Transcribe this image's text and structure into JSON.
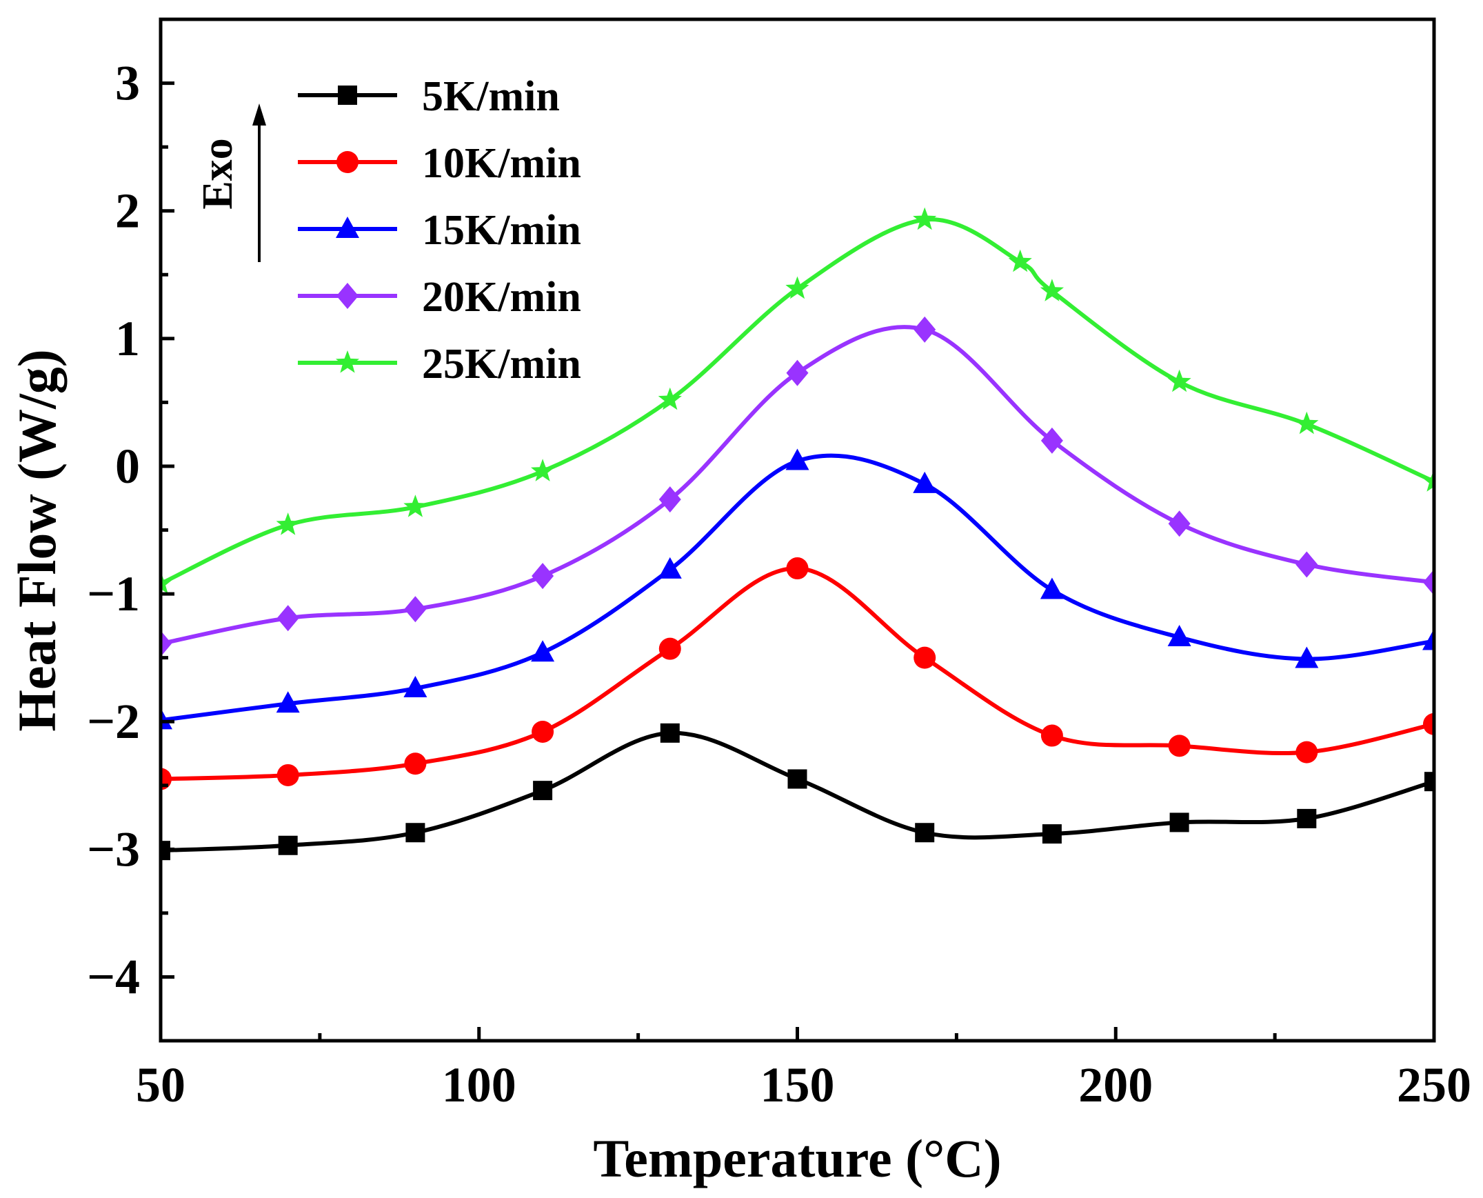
{
  "chart_data": {
    "type": "line",
    "title": "",
    "xlabel": "Temperature (°C)",
    "ylabel": "Heat Flow (W/g)",
    "xlim": [
      50,
      250
    ],
    "ylim": [
      -4.5,
      3.5
    ],
    "xticks": [
      50,
      100,
      150,
      200,
      250
    ],
    "xtick_labels": [
      "50",
      "100",
      "150",
      "200",
      "250"
    ],
    "yticks": [
      -4,
      -3,
      -2,
      -1,
      0,
      1,
      2,
      3
    ],
    "ytick_labels": [
      "−4",
      "−3",
      "−2",
      "−1",
      "0",
      "1",
      "2",
      "3"
    ],
    "annotation": "Exo",
    "legend_position": "top-left",
    "series": [
      {
        "name": "5K/min",
        "color": "#000000",
        "marker": "square",
        "x": [
          50,
          70,
          90,
          110,
          130,
          150,
          170,
          190,
          210,
          230,
          250
        ],
        "values": [
          -3.01,
          -2.97,
          -2.87,
          -2.54,
          -2.09,
          -2.45,
          -2.87,
          -2.88,
          -2.79,
          -2.76,
          -2.47
        ]
      },
      {
        "name": "10K/min",
        "color": "#ff0000",
        "marker": "circle",
        "x": [
          50,
          70,
          90,
          110,
          130,
          150,
          170,
          190,
          210,
          230,
          250
        ],
        "values": [
          -2.45,
          -2.42,
          -2.33,
          -2.08,
          -1.43,
          -0.8,
          -1.5,
          -2.11,
          -2.19,
          -2.24,
          -2.02
        ]
      },
      {
        "name": "15K/min",
        "color": "#0000ff",
        "marker": "triangle",
        "x": [
          50,
          70,
          90,
          110,
          130,
          150,
          170,
          190,
          210,
          230,
          250
        ],
        "values": [
          -1.99,
          -1.86,
          -1.74,
          -1.46,
          -0.81,
          0.04,
          -0.14,
          -0.97,
          -1.34,
          -1.51,
          -1.37
        ]
      },
      {
        "name": "20K/min",
        "color": "#9933ff",
        "marker": "diamond",
        "x": [
          50,
          70,
          90,
          110,
          130,
          150,
          170,
          190,
          210,
          230,
          250
        ],
        "values": [
          -1.39,
          -1.19,
          -1.12,
          -0.86,
          -0.26,
          0.73,
          1.07,
          0.2,
          -0.45,
          -0.77,
          -0.91
        ]
      },
      {
        "name": "25K/min",
        "color": "#33ee33",
        "marker": "star",
        "x": [
          50,
          70,
          90,
          110,
          130,
          150,
          170,
          185,
          190,
          210,
          230,
          250
        ],
        "values": [
          -0.92,
          -0.46,
          -0.32,
          -0.04,
          0.52,
          1.39,
          1.93,
          1.6,
          1.37,
          0.66,
          0.33,
          -0.12
        ]
      }
    ]
  }
}
